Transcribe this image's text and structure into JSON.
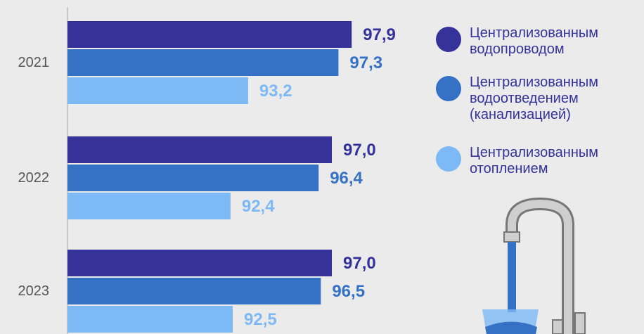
{
  "chart_data": {
    "type": "bar",
    "orientation": "horizontal",
    "categories": [
      "2021",
      "2022",
      "2023"
    ],
    "series": [
      {
        "name": "Централизованным водопроводом",
        "color": "#35339a",
        "values": [
          97.9,
          97.0,
          97.0
        ],
        "value_labels": [
          "97,9",
          "97,0",
          "97,0"
        ]
      },
      {
        "name": "Централизованным водоотведением (канализацией)",
        "color": "#3571c4",
        "values": [
          97.3,
          96.4,
          96.5
        ],
        "value_labels": [
          "97,3",
          "96,4",
          "96,5"
        ]
      },
      {
        "name": "Централизованным отоплением",
        "color": "#7db9f5",
        "values": [
          93.2,
          92.4,
          92.5
        ],
        "value_labels": [
          "93,2",
          "92,4",
          "92,5"
        ]
      }
    ],
    "xlim": [
      85,
      100
    ]
  }
}
